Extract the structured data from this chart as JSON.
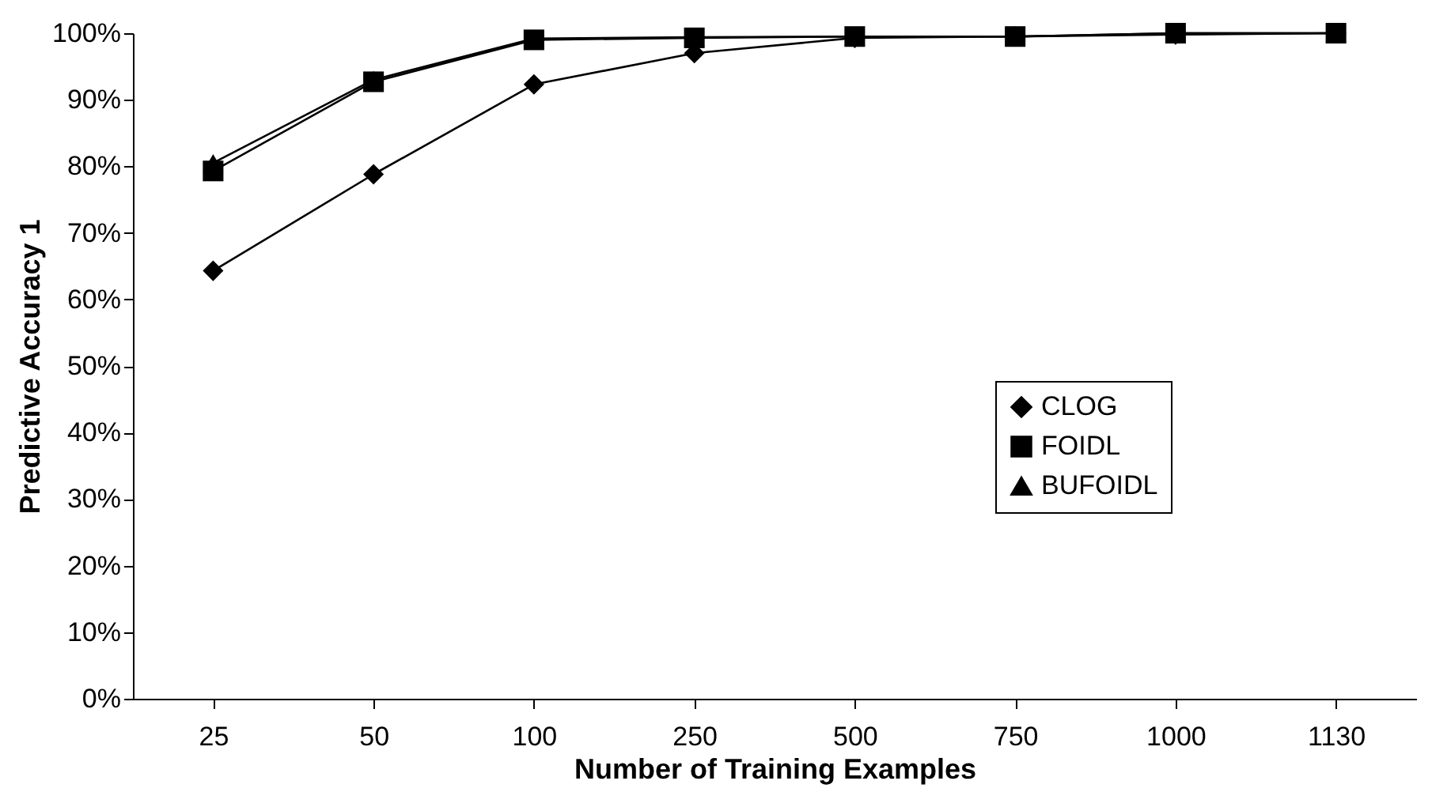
{
  "chart_data": {
    "type": "line",
    "xlabel": "Number of Training Examples",
    "ylabel": "Predictive Accuracy    1",
    "categories": [
      "25",
      "50",
      "100",
      "250",
      "500",
      "750",
      "1000",
      "1130"
    ],
    "ylim": [
      0,
      100
    ],
    "yticks": [
      {
        "value": 0,
        "label": "0%"
      },
      {
        "value": 10,
        "label": "10%"
      },
      {
        "value": 20,
        "label": "20%"
      },
      {
        "value": 30,
        "label": "30%"
      },
      {
        "value": 40,
        "label": "40%"
      },
      {
        "value": 50,
        "label": "50%"
      },
      {
        "value": 60,
        "label": "60%"
      },
      {
        "value": 70,
        "label": "70%"
      },
      {
        "value": 80,
        "label": "80%"
      },
      {
        "value": 90,
        "label": "90%"
      },
      {
        "value": 100,
        "label": "100%"
      }
    ],
    "grid": false,
    "legend": "right",
    "line_style": "solid",
    "series": [
      {
        "name": "CLOG",
        "color": "#000000",
        "marker": "diamond",
        "values": [
          64.3,
          78.8,
          92.3,
          97.0,
          99.3,
          99.5,
          99.8,
          100
        ]
      },
      {
        "name": "FOIDL",
        "color": "#000000",
        "marker": "square",
        "values": [
          79.3,
          92.7,
          99.0,
          99.3,
          99.5,
          99.5,
          100,
          100
        ]
      },
      {
        "name": "BUFOIDL",
        "color": "#000000",
        "marker": "triangle",
        "values": [
          80.5,
          93.0,
          99.2,
          99.4,
          99.5,
          99.5,
          100,
          100
        ]
      }
    ]
  }
}
